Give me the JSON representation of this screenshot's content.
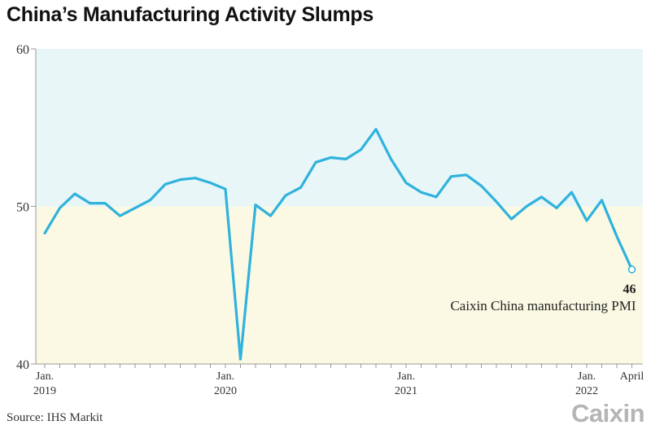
{
  "title": "China’s Manufacturing Activity Slumps",
  "source": "Source: IHS Markit",
  "logo": "Caixin",
  "colors": {
    "line": "#2fb2dc",
    "expansion_band": "#e8f6f8",
    "contraction_band": "#fbf9e3",
    "axis": "#9a9a9a",
    "logo": "#b5b5b5"
  },
  "chart_data": {
    "type": "line",
    "title": "China’s Manufacturing Activity Slumps",
    "xlabel": "",
    "ylabel": "",
    "ylim": [
      40,
      60
    ],
    "yticks": [
      40,
      50,
      60
    ],
    "grid": false,
    "background_bands": [
      {
        "from": 50,
        "to": 60,
        "color": "#e8f6f8"
      },
      {
        "from": 40,
        "to": 50,
        "color": "#fbf9e3"
      }
    ],
    "x": [
      "2019-01",
      "2019-02",
      "2019-03",
      "2019-04",
      "2019-05",
      "2019-06",
      "2019-07",
      "2019-08",
      "2019-09",
      "2019-10",
      "2019-11",
      "2019-12",
      "2020-01",
      "2020-02",
      "2020-03",
      "2020-04",
      "2020-05",
      "2020-06",
      "2020-07",
      "2020-08",
      "2020-09",
      "2020-10",
      "2020-11",
      "2020-12",
      "2021-01",
      "2021-02",
      "2021-03",
      "2021-04",
      "2021-05",
      "2021-06",
      "2021-07",
      "2021-08",
      "2021-09",
      "2021-10",
      "2021-11",
      "2021-12",
      "2022-01",
      "2022-02",
      "2022-03",
      "2022-04"
    ],
    "x_tick_labels": [
      {
        "index": 0,
        "line1": "Jan.",
        "line2": "2019"
      },
      {
        "index": 12,
        "line1": "Jan.",
        "line2": "2020"
      },
      {
        "index": 24,
        "line1": "Jan.",
        "line2": "2021"
      },
      {
        "index": 36,
        "line1": "Jan.",
        "line2": "2022"
      },
      {
        "index": 39,
        "line1": "April",
        "line2": ""
      }
    ],
    "series": [
      {
        "name": "Caixin China manufacturing PMI",
        "color": "#2fb2dc",
        "values": [
          48.3,
          49.9,
          50.8,
          50.2,
          50.2,
          49.4,
          49.9,
          50.4,
          51.4,
          51.7,
          51.8,
          51.5,
          51.1,
          40.3,
          50.1,
          49.4,
          50.7,
          51.2,
          52.8,
          53.1,
          53.0,
          53.6,
          54.9,
          53.0,
          51.5,
          50.9,
          50.6,
          51.9,
          52.0,
          51.3,
          50.3,
          49.2,
          50.0,
          50.6,
          49.9,
          50.9,
          49.1,
          50.4,
          48.1,
          46.0
        ]
      }
    ],
    "annotation": {
      "index": 39,
      "value_label": "46",
      "text": "Caixin China manufacturing PMI"
    }
  }
}
